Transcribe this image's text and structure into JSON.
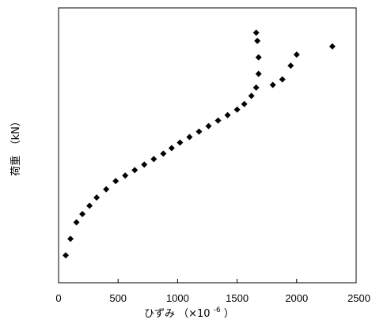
{
  "chart_data": {
    "type": "scatter",
    "title": "",
    "xlabel": "ひずみ （×10",
    "xlabel_exponent": "-6",
    "xlabel_close": "）",
    "ylabel": "荷重　（kN）",
    "xlim": [
      0,
      2500
    ],
    "x_ticks": [
      0,
      500,
      1000,
      1500,
      2000,
      2500
    ],
    "x_tick_labels": [
      "0",
      "500",
      "1000",
      "1500",
      "2000",
      "2500"
    ],
    "grid": false,
    "legend": "none",
    "series": [
      {
        "marker": "diamond",
        "color": "#000000",
        "points": [
          [
            60,
            0.1
          ],
          [
            100,
            0.16
          ],
          [
            150,
            0.22
          ],
          [
            200,
            0.25
          ],
          [
            260,
            0.28
          ],
          [
            320,
            0.31
          ],
          [
            400,
            0.34
          ],
          [
            480,
            0.37
          ],
          [
            560,
            0.39
          ],
          [
            640,
            0.41
          ],
          [
            720,
            0.43
          ],
          [
            800,
            0.45
          ],
          [
            880,
            0.47
          ],
          [
            950,
            0.49
          ],
          [
            1020,
            0.51
          ],
          [
            1100,
            0.53
          ],
          [
            1180,
            0.55
          ],
          [
            1260,
            0.57
          ],
          [
            1340,
            0.59
          ],
          [
            1420,
            0.61
          ],
          [
            1500,
            0.63
          ],
          [
            1560,
            0.65
          ],
          [
            1620,
            0.68
          ],
          [
            1660,
            0.71
          ],
          [
            1680,
            0.76
          ],
          [
            1680,
            0.82
          ],
          [
            1670,
            0.88
          ],
          [
            1660,
            0.91
          ],
          [
            1800,
            0.72
          ],
          [
            1880,
            0.74
          ],
          [
            1950,
            0.79
          ],
          [
            2000,
            0.83
          ],
          [
            2300,
            0.86
          ]
        ]
      }
    ]
  }
}
